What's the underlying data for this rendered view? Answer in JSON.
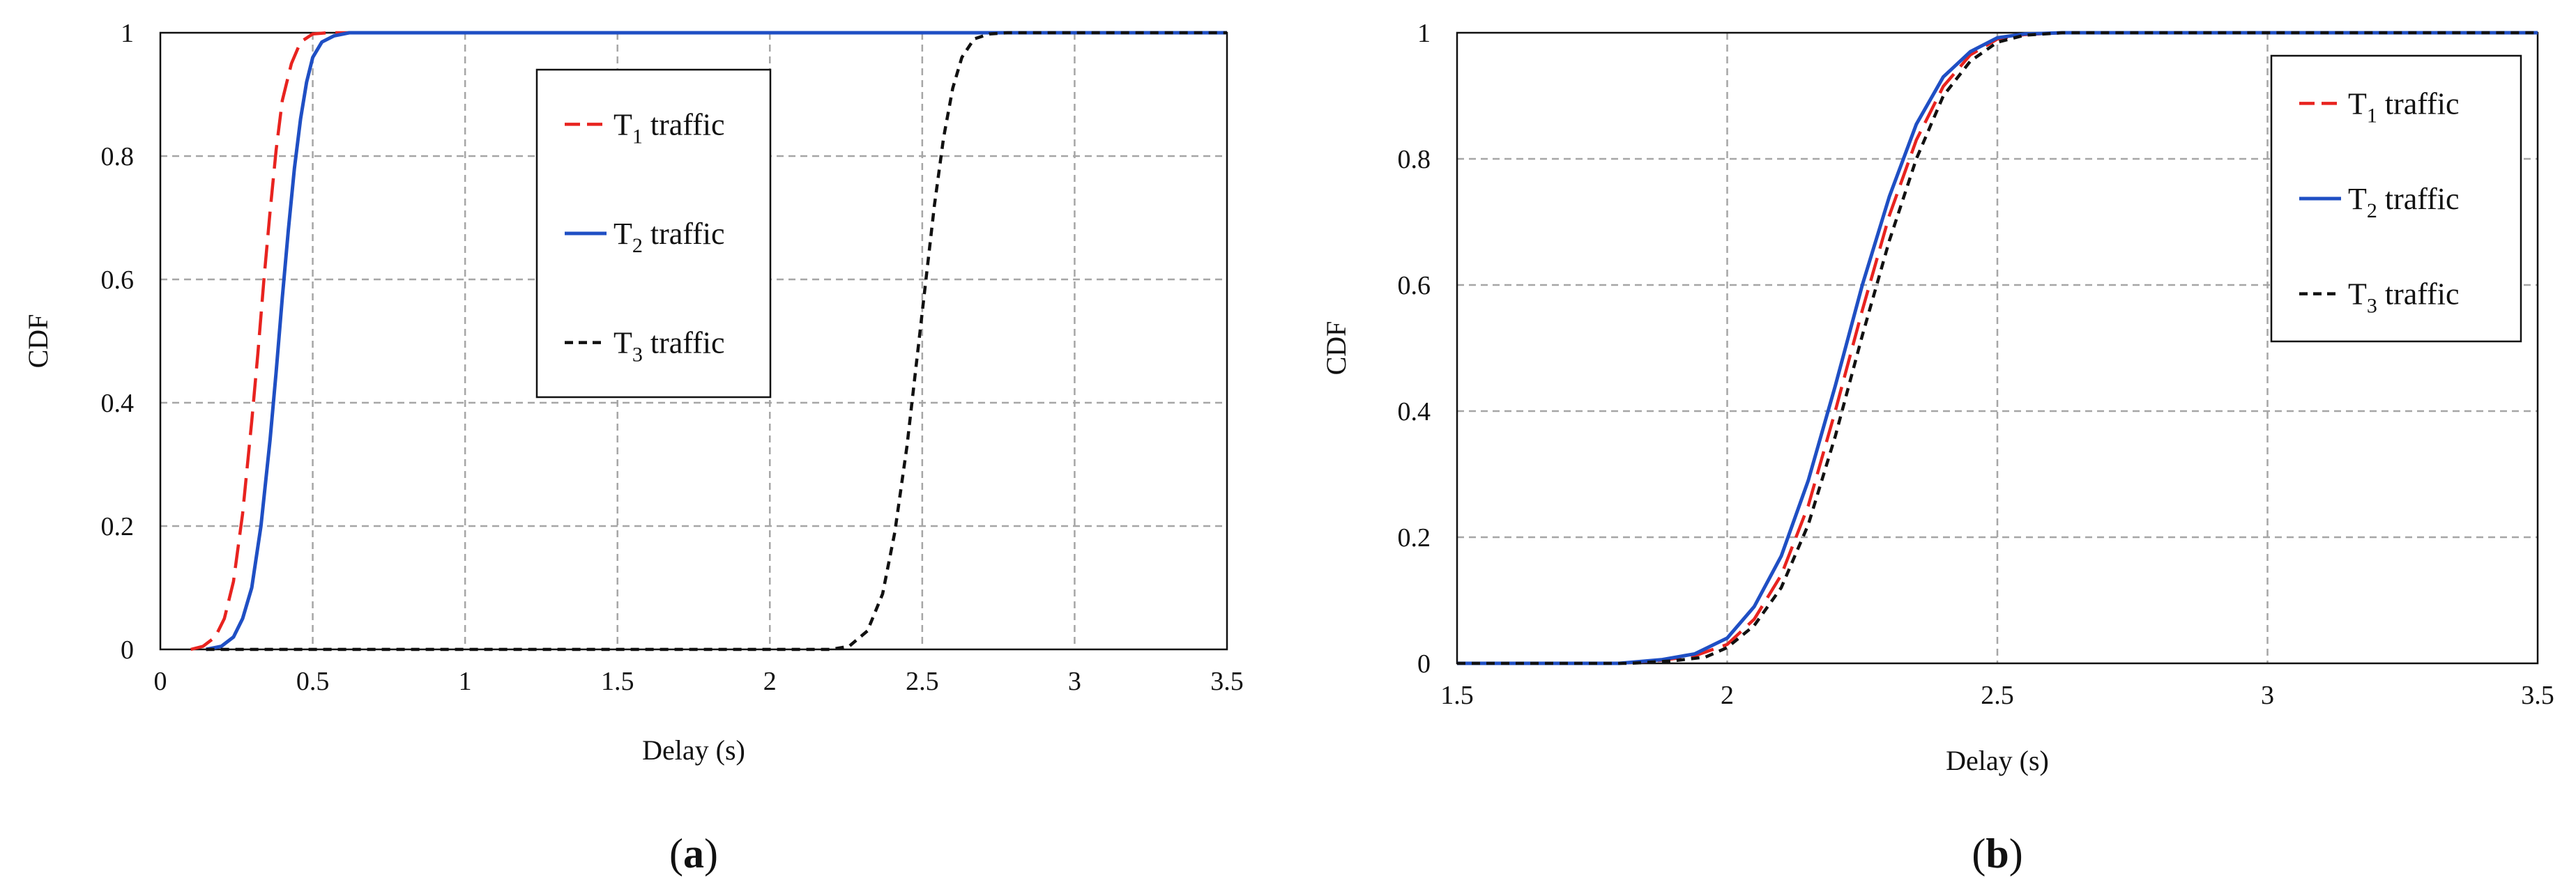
{
  "colors": {
    "t1": "#e8231f",
    "t2": "#1f4fc4",
    "t3": "#111111",
    "grid": "#a6a6a6"
  },
  "chart_data": [
    {
      "type": "line",
      "panel_label": "(a)",
      "panel_letter": "a",
      "xlabel": "Delay (s)",
      "ylabel": "CDF",
      "xlim": [
        0,
        3.5
      ],
      "ylim": [
        0,
        1
      ],
      "xticks": [
        "0",
        "0.5",
        "1",
        "1.5",
        "2",
        "2.5",
        "3",
        "3.5"
      ],
      "yticks": [
        "0",
        "0.2",
        "0.4",
        "0.6",
        "0.8",
        "1"
      ],
      "grid": true,
      "legend_position": "upper-middle",
      "series": [
        {
          "name": "T1 traffic",
          "legend_main": "T",
          "legend_sub": "1",
          "legend_rest": " traffic",
          "style": "long-dash",
          "color": "#e8231f",
          "x": [
            0.1,
            0.14,
            0.18,
            0.21,
            0.24,
            0.27,
            0.3,
            0.32,
            0.34,
            0.36,
            0.38,
            0.4,
            0.43,
            0.46,
            0.5,
            0.55,
            3.5
          ],
          "y": [
            0,
            0.005,
            0.02,
            0.05,
            0.11,
            0.22,
            0.37,
            0.48,
            0.6,
            0.71,
            0.81,
            0.89,
            0.95,
            0.985,
            0.998,
            1,
            1
          ]
        },
        {
          "name": "T2 traffic",
          "legend_main": "T",
          "legend_sub": "2",
          "legend_rest": " traffic",
          "style": "solid",
          "color": "#1f4fc4",
          "x": [
            0.15,
            0.2,
            0.24,
            0.27,
            0.3,
            0.33,
            0.36,
            0.38,
            0.4,
            0.42,
            0.44,
            0.46,
            0.48,
            0.5,
            0.53,
            0.57,
            0.62,
            0.7,
            3.5
          ],
          "y": [
            0,
            0.005,
            0.02,
            0.05,
            0.1,
            0.2,
            0.34,
            0.45,
            0.57,
            0.68,
            0.78,
            0.86,
            0.92,
            0.96,
            0.985,
            0.995,
            1,
            1,
            1
          ]
        },
        {
          "name": "T3 traffic",
          "legend_main": "T",
          "legend_sub": "3",
          "legend_rest": " traffic",
          "style": "short-dash",
          "color": "#111111",
          "x": [
            0.15,
            2.2,
            2.26,
            2.32,
            2.37,
            2.41,
            2.45,
            2.48,
            2.51,
            2.54,
            2.57,
            2.6,
            2.63,
            2.67,
            2.72,
            2.78,
            3.5
          ],
          "y": [
            0,
            0,
            0.005,
            0.03,
            0.09,
            0.19,
            0.33,
            0.46,
            0.59,
            0.72,
            0.83,
            0.91,
            0.96,
            0.99,
            0.998,
            1,
            1
          ]
        }
      ]
    },
    {
      "type": "line",
      "panel_label": "(b)",
      "panel_letter": "b",
      "xlabel": "Delay (s)",
      "ylabel": "CDF",
      "xlim": [
        1.5,
        3.5
      ],
      "ylim": [
        0,
        1
      ],
      "xticks": [
        "1.5",
        "2",
        "2.5",
        "3",
        "3.5"
      ],
      "yticks": [
        "0",
        "0.2",
        "0.4",
        "0.6",
        "0.8",
        "1"
      ],
      "grid": true,
      "legend_position": "top-right",
      "series": [
        {
          "name": "T1 traffic",
          "legend_main": "T",
          "legend_sub": "1",
          "legend_rest": " traffic",
          "style": "long-dash",
          "color": "#e8231f",
          "x": [
            1.5,
            1.8,
            1.88,
            1.94,
            2.0,
            2.05,
            2.1,
            2.15,
            2.2,
            2.25,
            2.3,
            2.35,
            2.4,
            2.45,
            2.5,
            2.55,
            2.62,
            2.7,
            3.5
          ],
          "y": [
            0,
            0,
            0.005,
            0.012,
            0.03,
            0.07,
            0.14,
            0.25,
            0.4,
            0.56,
            0.71,
            0.83,
            0.915,
            0.965,
            0.99,
            0.997,
            1,
            1,
            1
          ]
        },
        {
          "name": "T2 traffic",
          "legend_main": "T",
          "legend_sub": "2",
          "legend_rest": " traffic",
          "style": "solid",
          "color": "#1f4fc4",
          "x": [
            1.5,
            1.8,
            1.88,
            1.94,
            2.0,
            2.05,
            2.1,
            2.15,
            2.2,
            2.25,
            2.3,
            2.35,
            2.4,
            2.45,
            2.5,
            2.55,
            2.62,
            2.7,
            3.5
          ],
          "y": [
            0,
            0,
            0.006,
            0.015,
            0.04,
            0.09,
            0.17,
            0.29,
            0.44,
            0.6,
            0.74,
            0.855,
            0.93,
            0.97,
            0.992,
            0.998,
            1,
            1,
            1
          ]
        },
        {
          "name": "T3 traffic",
          "legend_main": "T",
          "legend_sub": "3",
          "legend_rest": " traffic",
          "style": "short-dash",
          "color": "#111111",
          "x": [
            1.5,
            1.82,
            1.9,
            1.96,
            2.0,
            2.05,
            2.1,
            2.15,
            2.2,
            2.25,
            2.3,
            2.35,
            2.4,
            2.45,
            2.5,
            2.55,
            2.62,
            2.7,
            3.5
          ],
          "y": [
            0,
            0,
            0.004,
            0.01,
            0.025,
            0.06,
            0.12,
            0.22,
            0.36,
            0.52,
            0.67,
            0.8,
            0.9,
            0.955,
            0.985,
            0.996,
            1,
            1,
            1
          ]
        }
      ]
    }
  ]
}
